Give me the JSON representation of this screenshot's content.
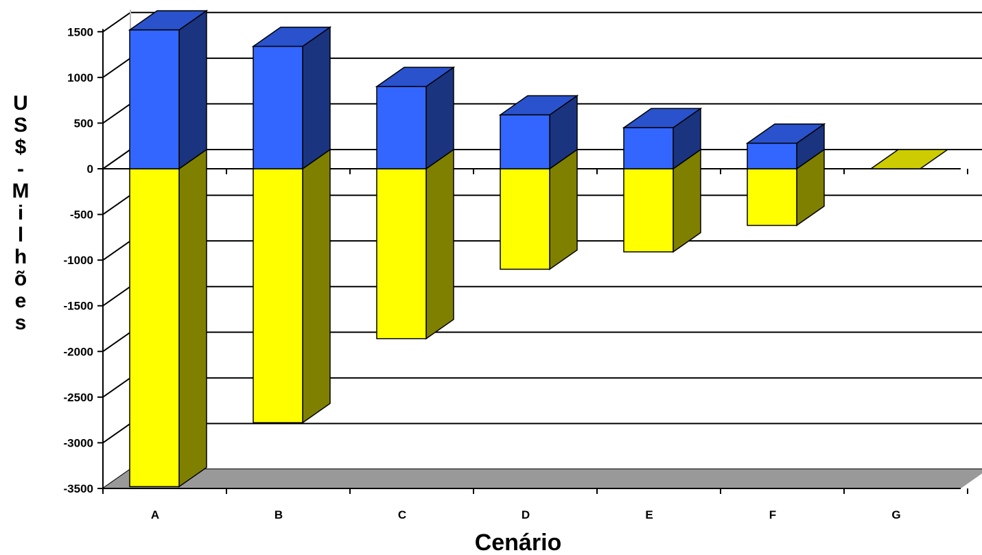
{
  "chart_data": {
    "type": "bar",
    "stacked": true,
    "three_d": true,
    "title": "",
    "xlabel": "Cenário",
    "ylabel": "US$ - Milhões",
    "ylim": [
      -3500,
      1500
    ],
    "yticks": [
      1500,
      1000,
      500,
      0,
      -500,
      -1000,
      -1500,
      -2000,
      -2500,
      -3000,
      -3500
    ],
    "categories": [
      "A",
      "B",
      "C",
      "D",
      "E",
      "F",
      "G"
    ],
    "grid": true,
    "legend": "none",
    "series": [
      {
        "values": [
          1520,
          1340,
          900,
          590,
          450,
          280,
          0
        ],
        "color": "#3366ff"
      },
      {
        "values": [
          -3480,
          -2780,
          -1860,
          -1100,
          -910,
          -620,
          0
        ],
        "color": "#ffff00"
      }
    ],
    "colors": {
      "positive_front": "#3366ff",
      "positive_side": "#1a3480",
      "positive_top": "#2952cc",
      "negative_front": "#ffff00",
      "negative_side": "#808000",
      "negative_top": "#cccc00",
      "wall": "#ffffff",
      "floor": "#999999",
      "grid": "#000000"
    }
  }
}
